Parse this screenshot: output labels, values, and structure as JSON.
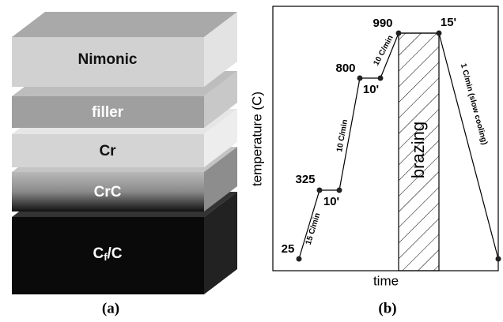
{
  "panel_a": {
    "layers": [
      "Nimonic",
      "filler",
      "Cr",
      "CrC"
    ],
    "base_layer": {
      "main": "C",
      "sub": "f",
      "rest": "/C"
    },
    "caption": "(a)"
  },
  "panel_b": {
    "y_label": "temperature (C)",
    "x_label": "time",
    "region_label": "brazing",
    "temperatures": [
      "25",
      "325",
      "800",
      "990"
    ],
    "holds": [
      "10'",
      "10'",
      "15'"
    ],
    "rates": [
      "15 C/min",
      "10 C/min",
      "10 C/min",
      "1 C/min (slow cooling)"
    ],
    "caption": "(b)"
  }
}
